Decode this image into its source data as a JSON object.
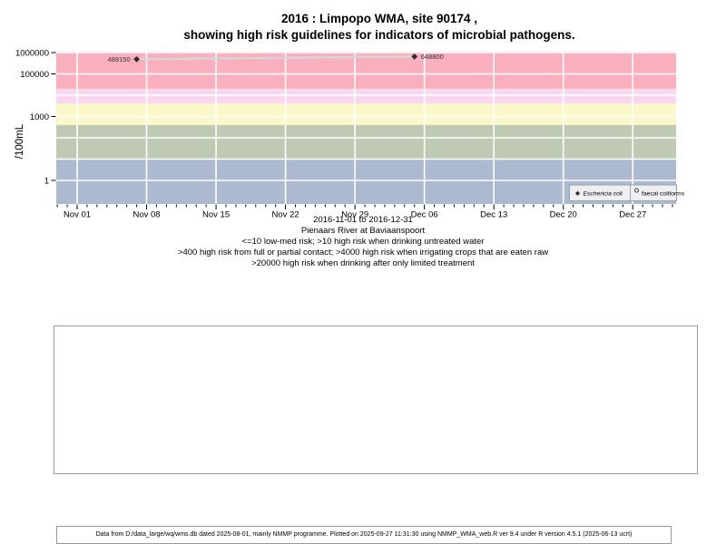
{
  "title": {
    "line1": "2016 : Limpopo WMA, site 90174 ,",
    "line2": "showing high risk guidelines for indicators of microbial pathogens."
  },
  "chart_data": {
    "type": "scatter",
    "ylabel": "/100mL",
    "y_scale": "log10",
    "date_range": {
      "start": "2016-11-01",
      "end": "2016-12-31"
    },
    "x_ticks": [
      {
        "label": "Nov 01",
        "day": 0
      },
      {
        "label": "Nov 08",
        "day": 7
      },
      {
        "label": "Nov 15",
        "day": 14
      },
      {
        "label": "Nov 22",
        "day": 21
      },
      {
        "label": "Nov 29",
        "day": 28
      },
      {
        "label": "Dec 06",
        "day": 35
      },
      {
        "label": "Dec 13",
        "day": 42
      },
      {
        "label": "Dec 20",
        "day": 49
      },
      {
        "label": "Dec 27",
        "day": 56
      }
    ],
    "x_minor_tick_days": {
      "from": -2,
      "to": 60
    },
    "y_ticks": [
      {
        "label": "1",
        "value": 1
      },
      {
        "label": "1000",
        "value": 1000
      },
      {
        "label": "100000",
        "value": 100000
      },
      {
        "label": "1000000",
        "value": 1000000
      }
    ],
    "y_gridline_values": [
      1,
      10,
      100,
      1000,
      10000,
      100000,
      1000000
    ],
    "gridline_color": "#FFFFFF",
    "risk_bands": [
      {
        "range_label": "above-20000",
        "min": 20000,
        "max": null,
        "color": "#F9AFBE"
      },
      {
        "range_label": "4000-20000",
        "min": 4000,
        "max": 20000,
        "color": "#F9D8EF"
      },
      {
        "range_label": "400-4000",
        "min": 400,
        "max": 4000,
        "color": "#FAF8C8"
      },
      {
        "range_label": "10-400",
        "min": 10,
        "max": 400,
        "color": "#BECAB2"
      },
      {
        "range_label": "below-10",
        "min": null,
        "max": 10,
        "color": "#ACBAD1"
      }
    ],
    "series": [
      {
        "name": "Eschericia coli",
        "marker": "filled-diamond",
        "marker_color": "#2E2E2E",
        "line_color": "#D6D6D6",
        "points": [
          {
            "date": "2016-11-07",
            "day": 6,
            "value": 489150,
            "label": "489150",
            "label_side": "left"
          },
          {
            "date": "2016-12-05",
            "day": 34,
            "value": 648800,
            "label": "648800",
            "label_side": "right"
          }
        ]
      },
      {
        "name": "faecal coliforms",
        "marker": "open-circle",
        "marker_color": "#2E2E2E",
        "points": []
      }
    ]
  },
  "legend": {
    "items": [
      {
        "label": "Eschericia coli",
        "marker": "filled-diamond",
        "italic": true
      },
      {
        "label": "faecal coliforms",
        "marker": "open-circle",
        "italic": false
      }
    ]
  },
  "captions": [
    "2016-11-01 to 2016-12-31",
    "Pienaars River at Baviaanspoort",
    "<=10 low-med risk; >10 high risk when drinking untreated water",
    ">400 high risk from full or partial contact; >4000 high risk when irrigating crops that are eaten raw",
    ">20000 high risk when drinking after only limited treatment"
  ],
  "footer": {
    "text": "Data from D:/data_large/wq/wms.db dated 2025-08-01, mainly NMMP programme. Plotted on 2025-09-27 11:31:30 using NMMP_WMA_web.R ver 9.4 under R version 4.5.1 (2025-06-13 ucrt)"
  }
}
